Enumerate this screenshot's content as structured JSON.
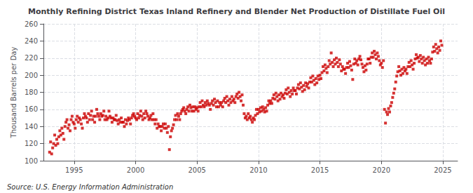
{
  "chart_data": {
    "type": "scatter",
    "title": "Monthly Refining District Texas Inland Refinery and Blender Net Production of Distillate Fuel Oil",
    "ylabel": "Thousand Barrels per Day",
    "annotation": "Source: U.S. Energy Information Administration",
    "color": "#cc0000",
    "marker": "square",
    "grid": true,
    "xlim": [
      1992.5,
      2026.2
    ],
    "ylim": [
      100,
      260
    ],
    "xticks": [
      1995,
      2000,
      2005,
      2010,
      2015,
      2020,
      2025
    ],
    "yticks": [
      100,
      120,
      140,
      160,
      180,
      200,
      220,
      240,
      260
    ],
    "x": [
      1993,
      1993.0833333333333,
      1993.1666666666667,
      1993.25,
      1993.3333333333333,
      1993.4166666666667,
      1993.5,
      1993.5833333333333,
      1993.6666666666667,
      1993.75,
      1993.8333333333333,
      1993.9166666666667,
      1994,
      1994.0833333333333,
      1994.1666666666667,
      1994.25,
      1994.3333333333333,
      1994.4166666666667,
      1994.5,
      1994.5833333333333,
      1994.6666666666667,
      1994.75,
      1994.8333333333333,
      1994.9166666666667,
      1995,
      1995.0833333333333,
      1995.1666666666667,
      1995.25,
      1995.3333333333333,
      1995.4166666666667,
      1995.5,
      1995.5833333333333,
      1995.6666666666667,
      1995.75,
      1995.8333333333333,
      1995.9166666666667,
      1996,
      1996.0833333333333,
      1996.1666666666667,
      1996.25,
      1996.3333333333333,
      1996.4166666666667,
      1996.5,
      1996.5833333333333,
      1996.6666666666667,
      1996.75,
      1996.8333333333333,
      1996.9166666666667,
      1997,
      1997.0833333333333,
      1997.1666666666667,
      1997.25,
      1997.3333333333333,
      1997.4166666666667,
      1997.5,
      1997.5833333333333,
      1997.6666666666667,
      1997.75,
      1997.8333333333333,
      1997.9166666666667,
      1998,
      1998.0833333333333,
      1998.1666666666667,
      1998.25,
      1998.3333333333333,
      1998.4166666666667,
      1998.5,
      1998.5833333333333,
      1998.6666666666667,
      1998.75,
      1998.8333333333333,
      1998.9166666666667,
      1999,
      1999.0833333333333,
      1999.1666666666667,
      1999.25,
      1999.3333333333333,
      1999.4166666666667,
      1999.5,
      1999.5833333333333,
      1999.6666666666667,
      1999.75,
      1999.8333333333333,
      1999.9166666666667,
      2000,
      2000.0833333333333,
      2000.1666666666667,
      2000.25,
      2000.3333333333333,
      2000.4166666666667,
      2000.5,
      2000.5833333333333,
      2000.6666666666667,
      2000.75,
      2000.8333333333333,
      2000.9166666666667,
      2001,
      2001.0833333333333,
      2001.1666666666667,
      2001.25,
      2001.3333333333333,
      2001.4166666666667,
      2001.5,
      2001.5833333333333,
      2001.6666666666667,
      2001.75,
      2001.8333333333333,
      2001.9166666666667,
      2002,
      2002.0833333333333,
      2002.1666666666667,
      2002.25,
      2002.3333333333333,
      2002.4166666666667,
      2002.5,
      2002.5833333333333,
      2002.6666666666667,
      2002.75,
      2002.8333333333333,
      2002.9166666666667,
      2003,
      2003.0833333333333,
      2003.1666666666667,
      2003.25,
      2003.3333333333333,
      2003.4166666666667,
      2003.5,
      2003.5833333333333,
      2003.6666666666667,
      2003.75,
      2003.8333333333333,
      2003.9166666666667,
      2004,
      2004.0833333333333,
      2004.1666666666667,
      2004.25,
      2004.3333333333333,
      2004.4166666666667,
      2004.5,
      2004.5833333333333,
      2004.6666666666667,
      2004.75,
      2004.8333333333333,
      2004.9166666666667,
      2005,
      2005.0833333333333,
      2005.1666666666667,
      2005.25,
      2005.3333333333333,
      2005.4166666666667,
      2005.5,
      2005.5833333333333,
      2005.6666666666667,
      2005.75,
      2005.8333333333333,
      2005.9166666666667,
      2006,
      2006.0833333333333,
      2006.1666666666667,
      2006.25,
      2006.3333333333333,
      2006.4166666666667,
      2006.5,
      2006.5833333333333,
      2006.6666666666667,
      2006.75,
      2006.8333333333333,
      2006.9166666666667,
      2007,
      2007.0833333333333,
      2007.1666666666667,
      2007.25,
      2007.3333333333333,
      2007.4166666666667,
      2007.5,
      2007.5833333333333,
      2007.6666666666667,
      2007.75,
      2007.8333333333333,
      2007.9166666666667,
      2008,
      2008.0833333333333,
      2008.1666666666667,
      2008.25,
      2008.3333333333333,
      2008.4166666666667,
      2008.5,
      2008.5833333333333,
      2008.6666666666667,
      2008.75,
      2008.8333333333333,
      2008.9166666666667,
      2009,
      2009.0833333333333,
      2009.1666666666667,
      2009.25,
      2009.3333333333333,
      2009.4166666666667,
      2009.5,
      2009.5833333333333,
      2009.6666666666667,
      2009.75,
      2009.8333333333333,
      2009.9166666666667,
      2010,
      2010.0833333333333,
      2010.1666666666667,
      2010.25,
      2010.3333333333333,
      2010.4166666666667,
      2010.5,
      2010.5833333333333,
      2010.6666666666667,
      2010.75,
      2010.8333333333333,
      2010.9166666666667,
      2011,
      2011.0833333333333,
      2011.1666666666667,
      2011.25,
      2011.3333333333333,
      2011.4166666666667,
      2011.5,
      2011.5833333333333,
      2011.6666666666667,
      2011.75,
      2011.8333333333333,
      2011.9166666666667,
      2012,
      2012.0833333333333,
      2012.1666666666667,
      2012.25,
      2012.3333333333333,
      2012.4166666666667,
      2012.5,
      2012.5833333333333,
      2012.6666666666667,
      2012.75,
      2012.8333333333333,
      2012.9166666666667,
      2013,
      2013.0833333333333,
      2013.1666666666667,
      2013.25,
      2013.3333333333333,
      2013.4166666666667,
      2013.5,
      2013.5833333333333,
      2013.6666666666667,
      2013.75,
      2013.8333333333333,
      2013.9166666666667,
      2014,
      2014.0833333333333,
      2014.1666666666667,
      2014.25,
      2014.3333333333333,
      2014.4166666666667,
      2014.5,
      2014.5833333333333,
      2014.6666666666667,
      2014.75,
      2014.8333333333333,
      2014.9166666666667,
      2015,
      2015.0833333333333,
      2015.1666666666667,
      2015.25,
      2015.3333333333333,
      2015.4166666666667,
      2015.5,
      2015.5833333333333,
      2015.6666666666667,
      2015.75,
      2015.8333333333333,
      2015.9166666666667,
      2016,
      2016.0833333333333,
      2016.1666666666667,
      2016.25,
      2016.3333333333333,
      2016.4166666666667,
      2016.5,
      2016.5833333333333,
      2016.6666666666667,
      2016.75,
      2016.8333333333333,
      2016.9166666666667,
      2017,
      2017.0833333333333,
      2017.1666666666667,
      2017.25,
      2017.3333333333333,
      2017.4166666666667,
      2017.5,
      2017.5833333333333,
      2017.6666666666667,
      2017.75,
      2017.8333333333333,
      2017.9166666666667,
      2018,
      2018.0833333333333,
      2018.1666666666667,
      2018.25,
      2018.3333333333333,
      2018.4166666666667,
      2018.5,
      2018.5833333333333,
      2018.6666666666667,
      2018.75,
      2018.8333333333333,
      2018.9166666666667,
      2019,
      2019.0833333333333,
      2019.1666666666667,
      2019.25,
      2019.3333333333333,
      2019.4166666666667,
      2019.5,
      2019.5833333333333,
      2019.6666666666667,
      2019.75,
      2019.8333333333333,
      2019.9166666666667,
      2020,
      2020.0833333333333,
      2020.1666666666667,
      2020.25,
      2020.3333333333333,
      2020.4166666666667,
      2020.5,
      2020.5833333333333,
      2020.6666666666667,
      2020.75,
      2020.8333333333333,
      2020.9166666666667,
      2021,
      2021.0833333333333,
      2021.1666666666667,
      2021.25,
      2021.3333333333333,
      2021.4166666666667,
      2021.5,
      2021.5833333333333,
      2021.6666666666667,
      2021.75,
      2021.8333333333333,
      2021.9166666666667,
      2022,
      2022.0833333333333,
      2022.1666666666667,
      2022.25,
      2022.3333333333333,
      2022.4166666666667,
      2022.5,
      2022.5833333333333,
      2022.6666666666667,
      2022.75,
      2022.8333333333333,
      2022.9166666666667,
      2023,
      2023.0833333333333,
      2023.1666666666667,
      2023.25,
      2023.3333333333333,
      2023.4166666666667,
      2023.5,
      2023.5833333333333,
      2023.6666666666667,
      2023.75,
      2023.8333333333333,
      2023.9166666666667,
      2024,
      2024.0833333333333,
      2024.1666666666667,
      2024.25,
      2024.3333333333333,
      2024.4166666666667,
      2024.5,
      2024.5833333333333,
      2024.6666666666667,
      2024.75,
      2024.8333333333333,
      2024.9166666666667
    ],
    "values": [
      110,
      122,
      108,
      115,
      120,
      130,
      118,
      125,
      120,
      128,
      135,
      130,
      138,
      132,
      125,
      140,
      145,
      148,
      138,
      142,
      135,
      148,
      152,
      145,
      143,
      138,
      148,
      152,
      145,
      150,
      148,
      143,
      138,
      150,
      155,
      152,
      150,
      145,
      155,
      148,
      153,
      158,
      148,
      152,
      145,
      152,
      160,
      155,
      152,
      148,
      155,
      152,
      153,
      158,
      148,
      152,
      148,
      150,
      158,
      152,
      150,
      145,
      150,
      148,
      148,
      153,
      147,
      143,
      148,
      145,
      150,
      145,
      145,
      140,
      148,
      143,
      147,
      150,
      148,
      143,
      150,
      153,
      155,
      152,
      150,
      148,
      155,
      150,
      153,
      158,
      152,
      148,
      155,
      150,
      158,
      155,
      152,
      148,
      150,
      153,
      148,
      155,
      148,
      143,
      148,
      138,
      143,
      140,
      140,
      135,
      140,
      143,
      138,
      143,
      138,
      133,
      140,
      113,
      128,
      135,
      138,
      142,
      148,
      153,
      148,
      155,
      152,
      148,
      155,
      158,
      160,
      162,
      158,
      155,
      160,
      163,
      158,
      165,
      162,
      158,
      163,
      158,
      163,
      160,
      162,
      158,
      163,
      168,
      163,
      170,
      165,
      163,
      168,
      165,
      170,
      167,
      165,
      160,
      167,
      170,
      165,
      172,
      168,
      163,
      170,
      163,
      168,
      165,
      168,
      163,
      170,
      173,
      168,
      175,
      170,
      165,
      172,
      168,
      175,
      170,
      172,
      168,
      175,
      178,
      173,
      180,
      175,
      170,
      177,
      165,
      155,
      150,
      152,
      148,
      155,
      150,
      152,
      148,
      145,
      150,
      148,
      153,
      160,
      155,
      160,
      157,
      162,
      158,
      163,
      160,
      157,
      162,
      158,
      165,
      170,
      167,
      170,
      167,
      173,
      177,
      172,
      179,
      175,
      170,
      177,
      172,
      179,
      175,
      177,
      173,
      179,
      183,
      178,
      185,
      180,
      175,
      182,
      178,
      185,
      182,
      182,
      178,
      185,
      189,
      184,
      191,
      186,
      181,
      188,
      183,
      191,
      187,
      190,
      185,
      192,
      197,
      192,
      199,
      194,
      189,
      196,
      191,
      199,
      195,
      200,
      196,
      203,
      210,
      205,
      212,
      208,
      203,
      210,
      217,
      213,
      226,
      215,
      210,
      218,
      213,
      220,
      215,
      210,
      218,
      213,
      205,
      210,
      207,
      207,
      202,
      209,
      214,
      209,
      216,
      211,
      206,
      195,
      213,
      219,
      214,
      217,
      212,
      219,
      222,
      218,
      213,
      209,
      204,
      211,
      206,
      213,
      219,
      219,
      214,
      221,
      226,
      221,
      228,
      224,
      219,
      226,
      222,
      217,
      212,
      214,
      209,
      217,
      160,
      144,
      157,
      154,
      161,
      157,
      164,
      168,
      174,
      179,
      184,
      192,
      199,
      204,
      210,
      205,
      200,
      207,
      202,
      209,
      205,
      207,
      202,
      210,
      215,
      210,
      217,
      212,
      207,
      214,
      219,
      224,
      220,
      221,
      216,
      223,
      219,
      214,
      221,
      217,
      212,
      219,
      214,
      221,
      217,
      214,
      219,
      227,
      233,
      228,
      236,
      231,
      226,
      233,
      229,
      240,
      235
    ]
  }
}
